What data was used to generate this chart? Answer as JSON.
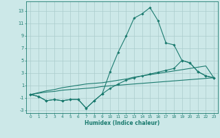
{
  "xlabel": "Humidex (Indice chaleur)",
  "bg_color": "#cce8e8",
  "grid_color": "#aacccc",
  "line_color": "#1a7a6e",
  "x": [
    0,
    1,
    2,
    3,
    4,
    5,
    6,
    7,
    8,
    9,
    10,
    11,
    12,
    13,
    14,
    15,
    16,
    17,
    18,
    19,
    20,
    21,
    22,
    23
  ],
  "line1_y": [
    -0.5,
    -0.8,
    -1.5,
    -1.3,
    -1.5,
    -1.3,
    -1.3,
    -2.7,
    -1.5,
    -0.4,
    3.2,
    6.3,
    8.9,
    11.8,
    12.5,
    13.5,
    11.4,
    7.8,
    7.5,
    5.0,
    4.6,
    3.2,
    2.5,
    2.2
  ],
  "line2_y": [
    -0.5,
    -0.8,
    -1.5,
    -1.3,
    -1.5,
    -1.3,
    -1.3,
    -2.7,
    -1.5,
    -0.4,
    0.5,
    1.2,
    1.8,
    2.2,
    2.5,
    2.8,
    3.1,
    3.4,
    3.7,
    5.0,
    4.6,
    3.2,
    2.5,
    2.2
  ],
  "line3_y": [
    -0.5,
    -0.2,
    0.1,
    0.3,
    0.6,
    0.8,
    1.0,
    1.2,
    1.3,
    1.4,
    1.6,
    1.8,
    2.0,
    2.3,
    2.5,
    2.7,
    2.9,
    3.1,
    3.3,
    3.5,
    3.7,
    3.9,
    4.1,
    2.2
  ],
  "line4_y": [
    -0.5,
    -0.3,
    -0.1,
    0.0,
    0.2,
    0.3,
    0.4,
    0.5,
    0.6,
    0.8,
    0.9,
    1.0,
    1.1,
    1.2,
    1.3,
    1.4,
    1.5,
    1.6,
    1.7,
    1.8,
    1.9,
    2.0,
    2.1,
    2.2
  ],
  "yticks": [
    -3,
    -1,
    1,
    3,
    5,
    7,
    9,
    11,
    13
  ],
  "xtick_labels": [
    "0",
    "1",
    "2",
    "3",
    "4",
    "5",
    "6",
    "7",
    "8",
    "9",
    "10",
    "11",
    "12",
    "13",
    "14",
    "15",
    "16",
    "17",
    "18",
    "19",
    "20",
    "21",
    "22",
    "23"
  ],
  "ylim": [
    -3.5,
    14.5
  ],
  "xlim": [
    -0.5,
    23.5
  ]
}
